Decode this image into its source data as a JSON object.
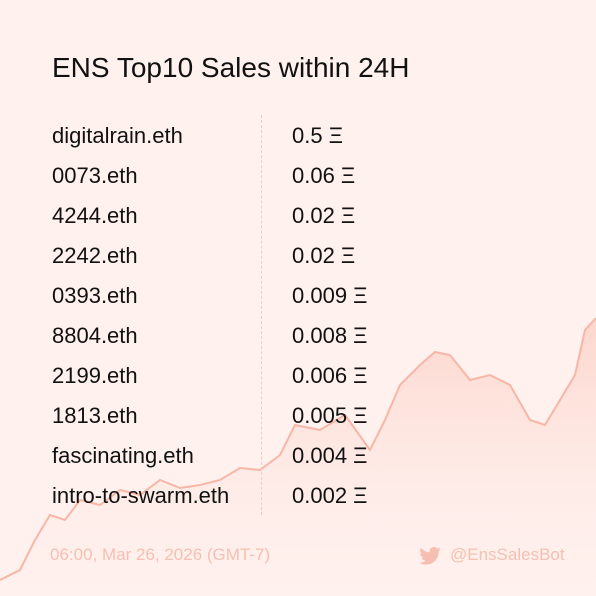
{
  "header": {
    "title": "ENS Top10 Sales within 24H"
  },
  "table": {
    "rows": [
      [
        "digitalrain.eth",
        "0.5 Ξ"
      ],
      [
        "0073.eth",
        "0.06 Ξ"
      ],
      [
        "4244.eth",
        "0.02 Ξ"
      ],
      [
        "2242.eth",
        "0.02 Ξ"
      ],
      [
        "0393.eth",
        "0.009 Ξ"
      ],
      [
        "8804.eth",
        "0.008 Ξ"
      ],
      [
        "2199.eth",
        "0.006 Ξ"
      ],
      [
        "1813.eth",
        "0.005 Ξ"
      ],
      [
        "fascinating.eth",
        "0.004 Ξ"
      ],
      [
        "intro-to-swarm.eth",
        "0.002 Ξ"
      ]
    ]
  },
  "footer": {
    "timestamp": "06:00, Mar 26, 2026 (GMT-7)",
    "handle": "@EnsSalesBot"
  }
}
